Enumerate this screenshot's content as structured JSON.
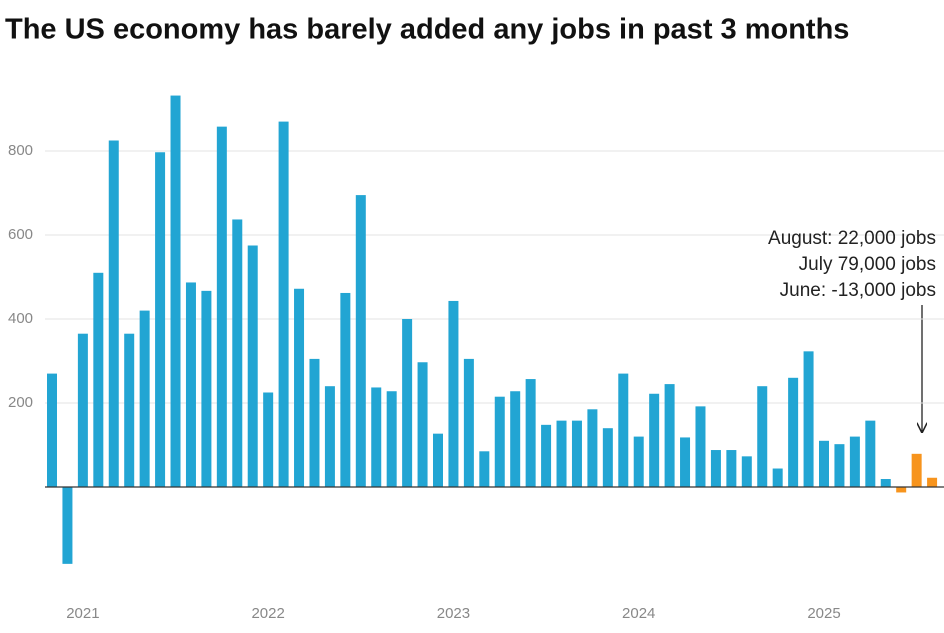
{
  "chart_data": {
    "type": "bar",
    "title": "The US economy has barely added any jobs in past 3 months",
    "categories": [
      null,
      null,
      "2021",
      null,
      null,
      null,
      null,
      null,
      null,
      null,
      null,
      null,
      null,
      null,
      "2022",
      null,
      null,
      null,
      null,
      null,
      null,
      null,
      null,
      null,
      null,
      null,
      "2023",
      null,
      null,
      null,
      null,
      null,
      null,
      null,
      null,
      null,
      null,
      null,
      "2024",
      null,
      null,
      null,
      null,
      null,
      null,
      null,
      null,
      null,
      null,
      null,
      "2025",
      null,
      null,
      null,
      null,
      null,
      null,
      null
    ],
    "values": [
      270,
      -183,
      365,
      510,
      825,
      365,
      420,
      797,
      932,
      487,
      467,
      858,
      637,
      575,
      225,
      870,
      472,
      305,
      240,
      462,
      695,
      237,
      228,
      400,
      297,
      127,
      443,
      305,
      85,
      215,
      228,
      257,
      148,
      158,
      158,
      185,
      140,
      270,
      120,
      222,
      245,
      118,
      192,
      88,
      88,
      73,
      240,
      44,
      260,
      323,
      110,
      102,
      120,
      158,
      19,
      -13,
      79,
      22
    ],
    "bar_colors": [
      "#22a5d3",
      "#22a5d3",
      "#22a5d3",
      "#22a5d3",
      "#22a5d3",
      "#22a5d3",
      "#22a5d3",
      "#22a5d3",
      "#22a5d3",
      "#22a5d3",
      "#22a5d3",
      "#22a5d3",
      "#22a5d3",
      "#22a5d3",
      "#22a5d3",
      "#22a5d3",
      "#22a5d3",
      "#22a5d3",
      "#22a5d3",
      "#22a5d3",
      "#22a5d3",
      "#22a5d3",
      "#22a5d3",
      "#22a5d3",
      "#22a5d3",
      "#22a5d3",
      "#22a5d3",
      "#22a5d3",
      "#22a5d3",
      "#22a5d3",
      "#22a5d3",
      "#22a5d3",
      "#22a5d3",
      "#22a5d3",
      "#22a5d3",
      "#22a5d3",
      "#22a5d3",
      "#22a5d3",
      "#22a5d3",
      "#22a5d3",
      "#22a5d3",
      "#22a5d3",
      "#22a5d3",
      "#22a5d3",
      "#22a5d3",
      "#22a5d3",
      "#22a5d3",
      "#22a5d3",
      "#22a5d3",
      "#22a5d3",
      "#22a5d3",
      "#22a5d3",
      "#22a5d3",
      "#22a5d3",
      "#22a5d3",
      "#f7941d",
      "#f7941d",
      "#f7941d"
    ],
    "ylim": [
      -250,
      950
    ],
    "yticks": [
      200,
      400,
      600,
      800
    ],
    "grid": true,
    "annotation": [
      "August: 22,000 jobs",
      "July 79,000 jobs",
      "June: -13,000 jobs"
    ]
  }
}
